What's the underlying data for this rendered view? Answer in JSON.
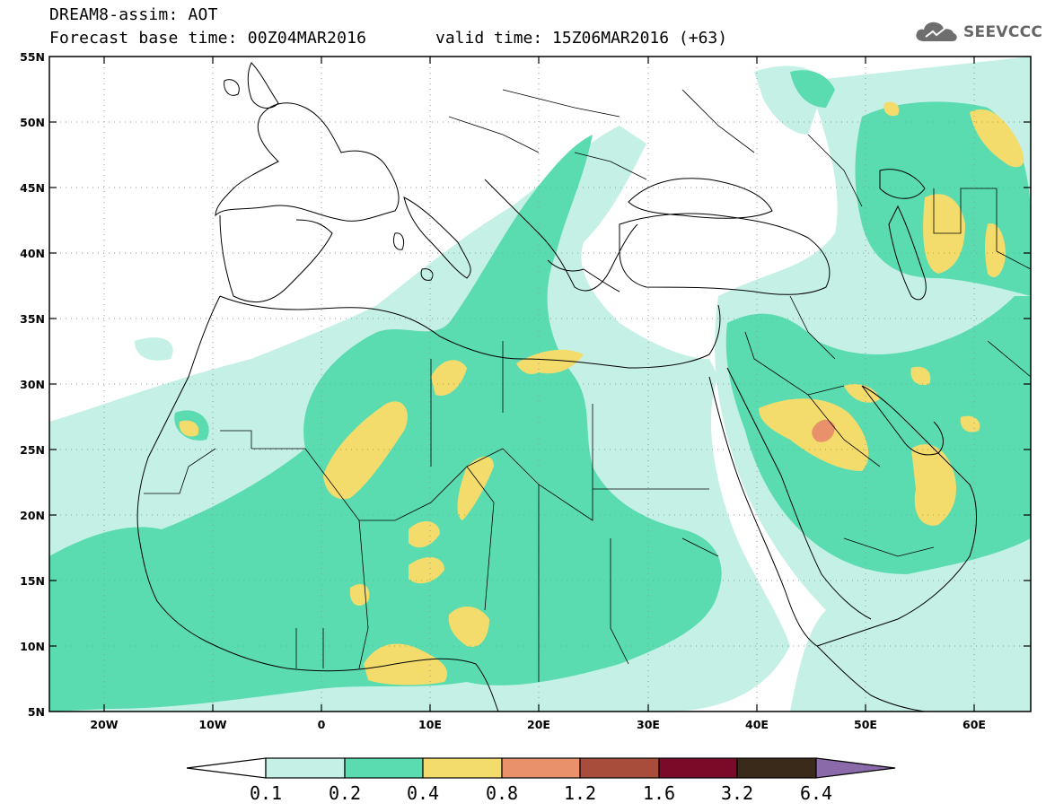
{
  "header": {
    "title": "DREAM8-assim: AOT",
    "base_time": "Forecast base time: 00Z04MAR2016",
    "valid_time": "valid time: 15Z06MAR2016 (+63)"
  },
  "logo": {
    "text": "SEEVCCC",
    "icon": "cloud-icon"
  },
  "map": {
    "lon_range": [
      -25,
      65
    ],
    "lat_range": [
      5,
      55
    ],
    "lon_ticks": [
      "20W",
      "10W",
      "0",
      "10E",
      "20E",
      "30E",
      "40E",
      "50E",
      "60E"
    ],
    "lat_ticks": [
      "55N",
      "50N",
      "45N",
      "40N",
      "35N",
      "30N",
      "25N",
      "20N",
      "15N",
      "10N",
      "5N"
    ],
    "grid": true
  },
  "colorbar": {
    "labels": [
      "0.1",
      "0.2",
      "0.4",
      "0.8",
      "1.2",
      "1.6",
      "3.2",
      "6.4"
    ],
    "colors": [
      "#ffffff",
      "#c5f0e6",
      "#5adcb0",
      "#f4dc6c",
      "#e8916b",
      "#a84c3c",
      "#7a0a28",
      "#3a2a1a",
      "#8a6aa8"
    ]
  }
}
